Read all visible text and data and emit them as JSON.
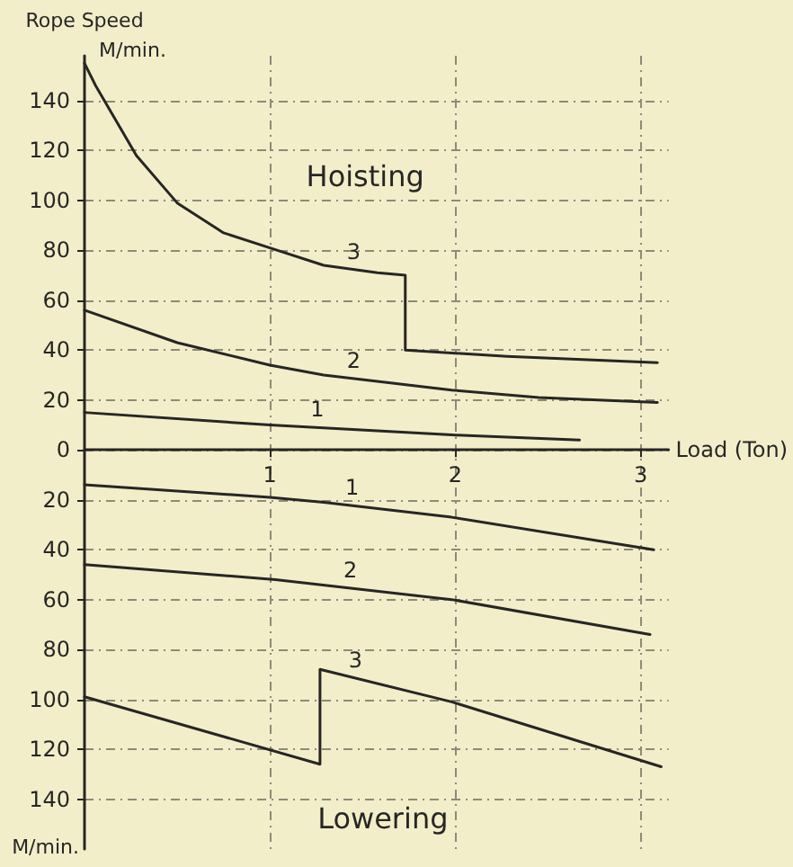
{
  "chart_data": {
    "type": "line",
    "ylabel": "Rope Speed",
    "xlabel": "Load (Ton)",
    "xlim": [
      0,
      3.15
    ],
    "xticks": [
      1,
      2,
      3
    ],
    "ylim": [
      -160,
      158
    ],
    "yticks": [
      {
        "value": -140,
        "label": "140"
      },
      {
        "value": -120,
        "label": "120"
      },
      {
        "value": -100,
        "label": "100"
      },
      {
        "value": -80,
        "label": "80"
      },
      {
        "value": -60,
        "label": "60"
      },
      {
        "value": -40,
        "label": "40"
      },
      {
        "value": -20,
        "label": "20"
      },
      0,
      20,
      40,
      60,
      80,
      100,
      120,
      140
    ],
    "grid": true,
    "marker": "none",
    "line_style": "solid",
    "series": [
      {
        "name": "3",
        "color": "#262626",
        "x": [
          0,
          0.06,
          0.28,
          0.5,
          0.75,
          1.0,
          1.29,
          1.58,
          1.73,
          1.73,
          2.28,
          3.09
        ],
        "values": [
          155,
          146,
          118,
          99,
          87,
          81,
          74,
          71,
          70,
          40,
          37.5,
          35
        ]
      },
      {
        "name": "2",
        "color": "#262626",
        "x": [
          0,
          0.5,
          1.0,
          1.29,
          1.98,
          2.45,
          3.09
        ],
        "values": [
          56,
          43,
          34,
          30,
          24,
          21,
          19
        ]
      },
      {
        "name": "1",
        "color": "#262626",
        "x": [
          0,
          1.0,
          1.98,
          2.67
        ],
        "values": [
          15,
          10,
          6,
          4
        ]
      },
      {
        "name": "1",
        "color": "#262626",
        "x": [
          0,
          1.0,
          1.29,
          1.98,
          3.07
        ],
        "values": [
          -14,
          -19,
          -21,
          -27,
          -40
        ]
      },
      {
        "name": "2",
        "color": "#262626",
        "x": [
          0,
          1.03,
          1.98,
          3.05
        ],
        "values": [
          -46,
          -52,
          -60,
          -74
        ]
      },
      {
        "name": "3",
        "color": "#262626",
        "x": [
          0,
          1.27,
          1.27,
          1.98,
          3.11
        ],
        "values": [
          -99,
          -126,
          -88,
          -101,
          -127
        ]
      }
    ],
    "annotations": [
      "M/min.",
      "M/min.",
      "Hoisting",
      "Lowering"
    ]
  }
}
